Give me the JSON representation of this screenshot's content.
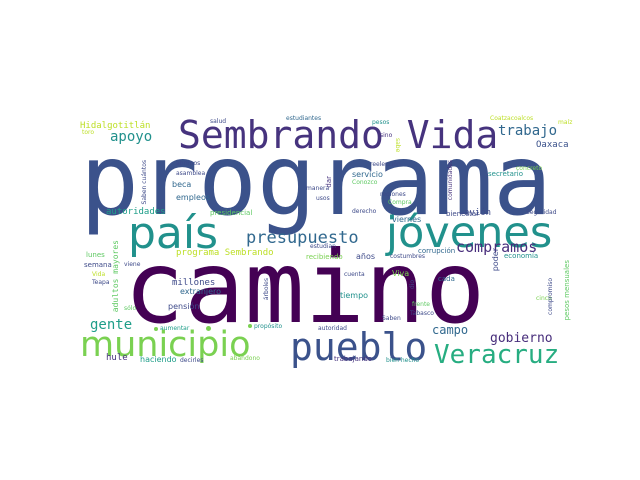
{
  "words": [
    {
      "id": "camino",
      "text": "camino",
      "color": "#440154"
    },
    {
      "id": "programa",
      "text": "programa",
      "color": "#3b528b"
    },
    {
      "id": "pais",
      "text": "país",
      "color": "#21918c"
    },
    {
      "id": "jovenes",
      "text": "jóvenes",
      "color": "#21918c"
    },
    {
      "id": "sembrando-vida",
      "text": "Sembrando Vida",
      "color": "#46337e"
    },
    {
      "id": "municipio",
      "text": "municipio",
      "color": "#7ad151"
    },
    {
      "id": "pueblo",
      "text": "pueblo",
      "color": "#3b528b"
    },
    {
      "id": "veracruz",
      "text": "Veracruz",
      "color": "#27ad81"
    },
    {
      "id": "presupuesto",
      "text": "presupuesto",
      "color": "#31688e"
    },
    {
      "id": "compramos",
      "text": "compramos",
      "color": "#472d7b"
    },
    {
      "id": "trabajo",
      "text": "trabajo",
      "color": "#31688e"
    },
    {
      "id": "apoyo",
      "text": "apoyo",
      "color": "#21918c"
    },
    {
      "id": "gente",
      "text": "gente",
      "color": "#1f9e89"
    },
    {
      "id": "campo",
      "text": "campo",
      "color": "#31688e"
    },
    {
      "id": "gobierno",
      "text": "gobierno",
      "color": "#472d7b"
    },
    {
      "id": "oaxaca",
      "text": "Oaxaca",
      "color": "#3b528b"
    },
    {
      "id": "programa-sembrando",
      "text": "programa Sembrando",
      "color": "#bddf26"
    },
    {
      "id": "hidalgotitlan",
      "text": "Hidalgotitlán",
      "color": "#bddf26"
    },
    {
      "id": "millones",
      "text": "millones",
      "color": "#3e4a89"
    },
    {
      "id": "pension",
      "text": "pensión",
      "color": "#3e4a89"
    },
    {
      "id": "hule",
      "text": "hule",
      "color": "#46337e"
    },
    {
      "id": "haciendo",
      "text": "haciendo",
      "color": "#1f9e89"
    },
    {
      "id": "autoridades",
      "text": "autoridades",
      "color": "#1f9e89"
    },
    {
      "id": "adultos-mayores",
      "text": "adultos mayores",
      "color": "#5ec962"
    },
    {
      "id": "viernes",
      "text": "viernes",
      "color": "#31688e"
    },
    {
      "id": "avion",
      "text": "avión",
      "color": "#3e4a89"
    },
    {
      "id": "anos",
      "text": "años",
      "color": "#3e4a89"
    },
    {
      "id": "tiempo",
      "text": "tiempo",
      "color": "#21918c"
    },
    {
      "id": "viva",
      "text": "Viva",
      "color": "#7ad151"
    },
    {
      "id": "poder",
      "text": "poder",
      "color": "#3e4a89"
    },
    {
      "id": "beca",
      "text": "beca",
      "color": "#31688e"
    },
    {
      "id": "empleos",
      "text": "empleos",
      "color": "#31688e"
    },
    {
      "id": "extranjero",
      "text": "extranjero",
      "color": "#31688e"
    },
    {
      "id": "servicio",
      "text": "servicio",
      "color": "#31688e"
    },
    {
      "id": "secretario",
      "text": "secretario",
      "color": "#21918c"
    },
    {
      "id": "bienestar",
      "text": "bienestar",
      "color": "#3e4a89"
    },
    {
      "id": "semana",
      "text": "semana",
      "color": "#3e4a89"
    },
    {
      "id": "lunes",
      "text": "lunes",
      "color": "#5ec962"
    },
    {
      "id": "dar",
      "text": "dar",
      "color": "#46337e"
    },
    {
      "id": "corrupcion",
      "text": "corrupción",
      "color": "#31688e"
    },
    {
      "id": "economia",
      "text": "economía",
      "color": "#21918c"
    },
    {
      "id": "cada",
      "text": "cada",
      "color": "#31688e"
    },
    {
      "id": "recibiendo",
      "text": "recibiendo",
      "color": "#7ad151"
    },
    {
      "id": "presidencial",
      "text": "presidencial",
      "color": "#5ec962"
    },
    {
      "id": "pesos-mensuales",
      "text": "pesos mensuales",
      "color": "#5ec962"
    },
    {
      "id": "trabajando",
      "text": "trabajando",
      "color": "#46337e"
    },
    {
      "id": "bien-hecho",
      "text": "bien hecho",
      "color": "#21918c"
    },
    {
      "id": "aumentar",
      "text": "aumentar",
      "color": "#1f9e89"
    },
    {
      "id": "proposito",
      "text": "propósito",
      "color": "#21918c"
    },
    {
      "id": "autoridad",
      "text": "autoridad",
      "color": "#3e4a89"
    },
    {
      "id": "abandono",
      "text": "abandono",
      "color": "#7ad151"
    },
    {
      "id": "decirles",
      "text": "decirles",
      "color": "#3e4a89"
    },
    {
      "id": "estudiantes",
      "text": "estudiantes",
      "color": "#31688e"
    },
    {
      "id": "salud",
      "text": "salud",
      "color": "#3e4a89"
    },
    {
      "id": "pesos",
      "text": "pesos",
      "color": "#21918c"
    },
    {
      "id": "sino",
      "text": "sino",
      "color": "#46337e"
    },
    {
      "id": "coatzacoalcos",
      "text": "Coatzacoalcos",
      "color": "#bddf26"
    },
    {
      "id": "maiz",
      "text": "maíz",
      "color": "#bddf26"
    },
    {
      "id": "toro",
      "text": "toro",
      "color": "#bddf26"
    },
    {
      "id": "abrimos",
      "text": "abrimos",
      "color": "#3e4a89"
    },
    {
      "id": "asamblea",
      "text": "asamblea",
      "color": "#3e4a89"
    },
    {
      "id": "saben-cuantos",
      "text": "Saben cuántos",
      "color": "#3e4a89"
    },
    {
      "id": "reeleccion",
      "text": "reelección",
      "color": "#3e4a89"
    },
    {
      "id": "conozco",
      "text": "Conozco",
      "color": "#5ec962"
    },
    {
      "id": "manera",
      "text": "manera",
      "color": "#3e4a89"
    },
    {
      "id": "usos",
      "text": "usos",
      "color": "#3e4a89"
    },
    {
      "id": "compra",
      "text": "Compra",
      "color": "#5ec962"
    },
    {
      "id": "regiones",
      "text": "regiones",
      "color": "#3e4a89"
    },
    {
      "id": "comunidades",
      "text": "comunidades",
      "color": "#46337e"
    },
    {
      "id": "concreto",
      "text": "concreto",
      "color": "#7ad151"
    },
    {
      "id": "seguridad",
      "text": "Seguridad",
      "color": "#3e4a89"
    },
    {
      "id": "derecho",
      "text": "derecho",
      "color": "#3e4a89"
    },
    {
      "id": "estudian",
      "text": "estudian",
      "color": "#3e4a89"
    },
    {
      "id": "costumbres",
      "text": "costumbres",
      "color": "#3e4a89"
    },
    {
      "id": "cuenta",
      "text": "cuenta",
      "color": "#3e4a89"
    },
    {
      "id": "arboles",
      "text": "árboles",
      "color": "#3e4a89"
    },
    {
      "id": "frente",
      "text": "frente",
      "color": "#5ec962"
    },
    {
      "id": "tabasco",
      "text": "Tabasco",
      "color": "#3e4a89"
    },
    {
      "id": "saben",
      "text": "Saben",
      "color": "#3e4a89"
    },
    {
      "id": "dio",
      "text": "dio",
      "color": "#3e4a89"
    },
    {
      "id": "cinco",
      "text": "cinco",
      "color": "#7ad151"
    },
    {
      "id": "compromiso",
      "text": "compromiso",
      "color": "#3e4a89"
    },
    {
      "id": "viene",
      "text": "viene",
      "color": "#3e4a89"
    },
    {
      "id": "vida",
      "text": "Vida",
      "color": "#bddf26"
    },
    {
      "id": "teapa",
      "text": "Teapa",
      "color": "#3e4a89"
    },
    {
      "id": "solo",
      "text": "sólo",
      "color": "#5ec962"
    },
    {
      "id": "sabe",
      "text": "sabe",
      "color": "#bddf26"
    }
  ]
}
